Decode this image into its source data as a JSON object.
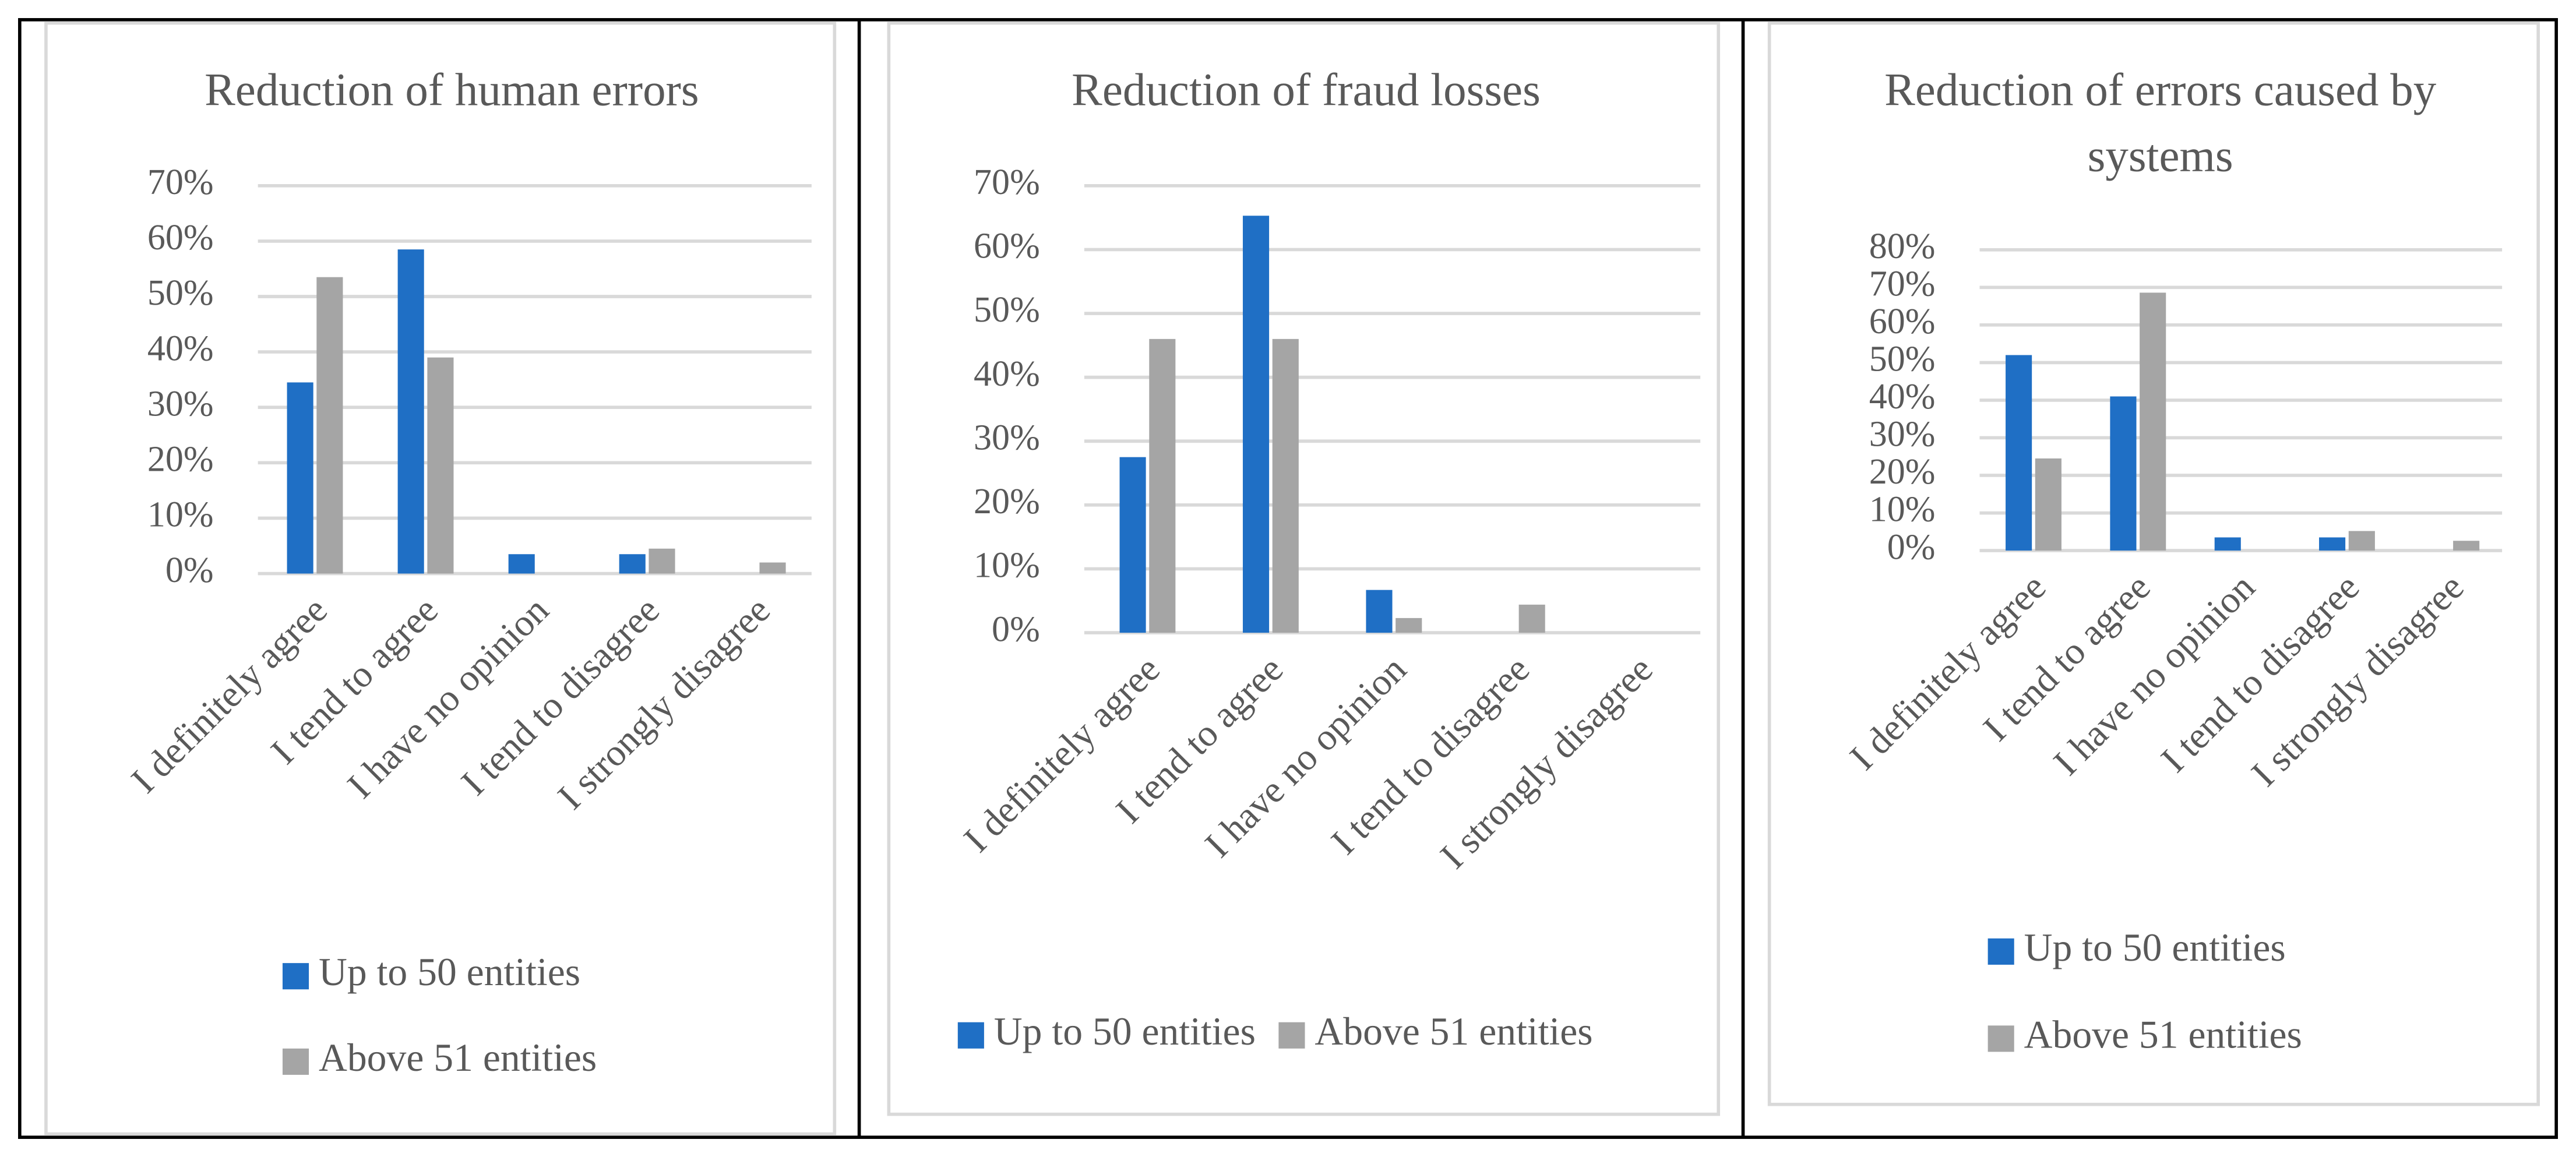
{
  "chart_data": [
    {
      "type": "bar",
      "title": "Reduction of human errors",
      "categories": [
        "I definitely agree",
        "I tend to agree",
        "I have no opinion",
        "I tend to disagree",
        "I strongly disagree"
      ],
      "series": [
        {
          "name": "Up to 50 entities",
          "color": "#1f6fc5",
          "values": [
            34.5,
            58.5,
            3.5,
            3.5,
            0
          ]
        },
        {
          "name": "Above 51 entities",
          "color": "#a5a5a5",
          "values": [
            53.5,
            39,
            0,
            4.5,
            2
          ]
        }
      ],
      "ylim": [
        0,
        70
      ],
      "yticks": [
        {
          "value": 0,
          "label": "0%"
        },
        {
          "value": 10,
          "label": "10%"
        },
        {
          "value": 20,
          "label": "20%"
        },
        {
          "value": 30,
          "label": "30%"
        },
        {
          "value": 40,
          "label": "40%"
        },
        {
          "value": 50,
          "label": "50%"
        },
        {
          "value": 60,
          "label": "60%"
        },
        {
          "value": 70,
          "label": "70%"
        }
      ],
      "grid": true,
      "legend": "bottom"
    },
    {
      "type": "bar",
      "title": "Reduction of fraud losses",
      "categories": [
        "I definitely agree",
        "I tend to agree",
        "I have no opinion",
        "I tend to disagree",
        "I strongly disagree"
      ],
      "series": [
        {
          "name": "Up to 50 entities",
          "color": "#1f6fc5",
          "values": [
            27.5,
            65.3,
            6.7,
            0,
            0
          ]
        },
        {
          "name": "Above 51 entities",
          "color": "#a5a5a5",
          "values": [
            46,
            46,
            2.3,
            4.4,
            0
          ]
        }
      ],
      "ylim": [
        0,
        70
      ],
      "yticks": [
        {
          "value": 0,
          "label": "0%"
        },
        {
          "value": 10,
          "label": "10%"
        },
        {
          "value": 20,
          "label": "20%"
        },
        {
          "value": 30,
          "label": "30%"
        },
        {
          "value": 40,
          "label": "40%"
        },
        {
          "value": 50,
          "label": "50%"
        },
        {
          "value": 60,
          "label": "60%"
        },
        {
          "value": 70,
          "label": "70%"
        }
      ],
      "grid": true,
      "legend": "bottom"
    },
    {
      "type": "bar",
      "title": "Reduction of errors caused by systems",
      "categories": [
        "I definitely agree",
        "I tend to agree",
        "I have no opinion",
        "I tend to disagree",
        "I strongly disagree"
      ],
      "series": [
        {
          "name": "Up to 50 entities",
          "color": "#1f6fc5",
          "values": [
            52,
            41,
            3.5,
            3.5,
            0
          ]
        },
        {
          "name": "Above 51 entities",
          "color": "#a5a5a5",
          "values": [
            24.5,
            68.6,
            0,
            5.2,
            2.6
          ]
        }
      ],
      "ylim": [
        0,
        80
      ],
      "yticks": [
        {
          "value": 0,
          "label": "0%"
        },
        {
          "value": 10,
          "label": "10%"
        },
        {
          "value": 20,
          "label": "20%"
        },
        {
          "value": 30,
          "label": "30%"
        },
        {
          "value": 40,
          "label": "40%"
        },
        {
          "value": 50,
          "label": "50%"
        },
        {
          "value": 60,
          "label": "60%"
        },
        {
          "value": 70,
          "label": "70%"
        },
        {
          "value": 80,
          "label": "80%"
        }
      ],
      "grid": true,
      "legend": "bottom"
    }
  ]
}
